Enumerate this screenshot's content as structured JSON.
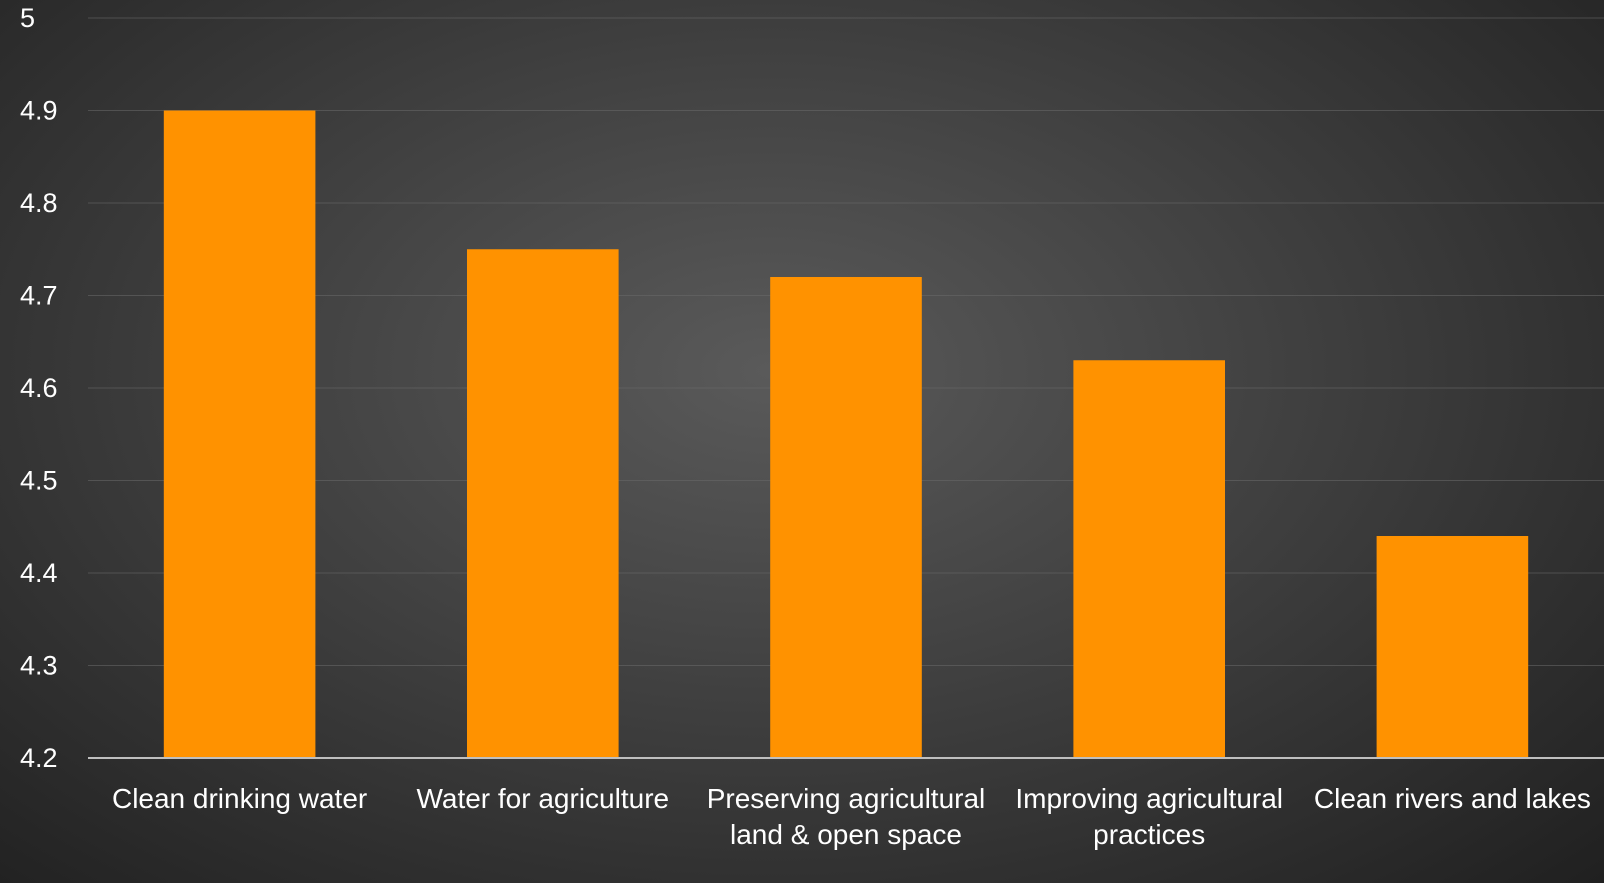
{
  "chart_data": {
    "type": "bar",
    "title": "",
    "xlabel": "",
    "ylabel": "",
    "categories": [
      [
        "Clean drinking water"
      ],
      [
        "Water for agriculture"
      ],
      [
        "Preserving agricultural",
        "land & open space"
      ],
      [
        "Improving agricultural",
        "practices"
      ],
      [
        "Clean rivers and lakes"
      ]
    ],
    "values": [
      4.9,
      4.75,
      4.72,
      4.63,
      4.44
    ],
    "ylim": [
      4.2,
      5.0
    ],
    "yticks": [
      "4.2",
      "4.3",
      "4.4",
      "4.5",
      "4.6",
      "4.7",
      "4.8",
      "4.9",
      "5"
    ],
    "grid": true,
    "legend": "none",
    "bar_color": "#FF9200"
  }
}
